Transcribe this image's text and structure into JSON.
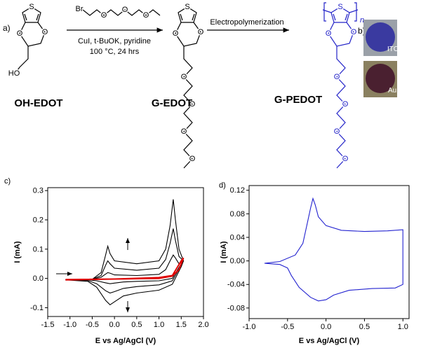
{
  "scheme": {
    "panel_a": "a)",
    "panel_b": "b)",
    "reagent": {
      "atoms": [
        "Br",
        "O",
        "O",
        "O"
      ]
    },
    "conditions": [
      "CuI, t-BuOK, pyridine",
      "100 °C, 24 hrs"
    ],
    "step2": "Electropolymerization",
    "compounds": [
      {
        "name": "OH-EDOT",
        "atoms": [
          "S",
          "O",
          "O",
          "HO"
        ]
      },
      {
        "name": "G-EDOT",
        "atoms": [
          "S",
          "O",
          "O",
          "O",
          "O",
          "O",
          "O"
        ]
      },
      {
        "name": "G-PEDOT",
        "atoms": [
          "S",
          "O",
          "O",
          "O",
          "O",
          "O",
          "O"
        ],
        "subscript": "n"
      }
    ],
    "photos": [
      "ITO",
      "Au"
    ]
  },
  "chart_data": [
    {
      "type": "line",
      "panel": "c)",
      "xlabel": "E vs Ag/AgCl (V)",
      "ylabel": "I (mA)",
      "xlim": [
        -1.5,
        2.0
      ],
      "ylim": [
        -0.13,
        0.31
      ],
      "xticks": [
        -1.5,
        {
          "value": -1,
          "label": "-1.0"
        },
        -0.5,
        {
          "value": 0,
          "label": "0.0"
        },
        0.5,
        {
          "value": 1,
          "label": "1.0"
        },
        1.5,
        {
          "value": 2,
          "label": "2.0"
        }
      ],
      "yticks": [
        -0.1,
        {
          "value": 0,
          "label": "0.0"
        },
        0.1,
        0.2,
        0.3
      ],
      "series": [
        {
          "color": "#000000",
          "x": [
            -1.1,
            -0.5,
            -0.3,
            -0.2,
            -0.15,
            -0.1,
            0,
            0.5,
            1.0,
            1.15,
            1.25,
            1.32,
            1.37,
            1.45,
            1.55,
            1.5,
            1.3,
            1.0,
            0.5,
            0.2,
            0,
            -0.1,
            -0.2,
            -0.4,
            -0.6,
            -1.1
          ],
          "values": [
            -0.005,
            -0.003,
            0.02,
            0.08,
            0.11,
            0.085,
            0.06,
            0.05,
            0.06,
            0.1,
            0.18,
            0.27,
            0.2,
            0.1,
            0.06,
            0.04,
            -0.02,
            -0.04,
            -0.05,
            -0.06,
            -0.08,
            -0.09,
            -0.075,
            -0.03,
            -0.01,
            -0.005
          ]
        },
        {
          "color": "#000000",
          "x": [
            -1.1,
            -0.5,
            -0.3,
            -0.2,
            -0.15,
            -0.1,
            0,
            0.5,
            1.0,
            1.15,
            1.25,
            1.32,
            1.37,
            1.45,
            1.55,
            1.5,
            1.3,
            1.0,
            0.5,
            0.2,
            0,
            -0.1,
            -0.2,
            -0.4,
            -0.6,
            -1.1
          ],
          "values": [
            -0.005,
            -0.003,
            0.01,
            0.045,
            0.06,
            0.05,
            0.035,
            0.028,
            0.035,
            0.065,
            0.12,
            0.17,
            0.13,
            0.075,
            0.06,
            0.045,
            -0.008,
            -0.022,
            -0.028,
            -0.034,
            -0.045,
            -0.05,
            -0.042,
            -0.018,
            -0.007,
            -0.005
          ]
        },
        {
          "color": "#000000",
          "x": [
            -1.1,
            -0.5,
            -0.3,
            -0.2,
            -0.15,
            -0.1,
            0,
            0.5,
            1.0,
            1.15,
            1.25,
            1.32,
            1.37,
            1.45,
            1.55,
            1.5,
            1.3,
            1.0,
            0.5,
            0.2,
            0,
            -0.1,
            -0.2,
            -0.4,
            -0.6,
            -1.1
          ],
          "values": [
            -0.005,
            -0.003,
            0.004,
            0.015,
            0.02,
            0.018,
            0.012,
            0.01,
            0.014,
            0.03,
            0.06,
            0.08,
            0.07,
            0.05,
            0.06,
            0.05,
            0.0,
            -0.008,
            -0.01,
            -0.012,
            -0.016,
            -0.018,
            -0.015,
            -0.008,
            -0.005,
            -0.005
          ]
        },
        {
          "color": "#e00000",
          "x": [
            -1.1,
            0,
            1.0,
            1.3,
            1.45,
            1.55,
            1.5,
            1.3,
            1.0,
            0,
            -1.1
          ],
          "values": [
            -0.004,
            -0.002,
            0.0,
            0.008,
            0.03,
            0.07,
            0.06,
            0.01,
            0.003,
            -0.002,
            -0.005
          ]
        }
      ]
    },
    {
      "type": "line",
      "panel": "d)",
      "xlabel": "E vs Ag/AgCl (V)",
      "ylabel": "I (mA)",
      "xlim": [
        -1.0,
        1.08
      ],
      "ylim": [
        -0.098,
        0.128
      ],
      "xticks": [
        {
          "value": -1,
          "label": "-1.0"
        },
        -0.5,
        {
          "value": 0,
          "label": "0.0"
        },
        0.5,
        {
          "value": 1,
          "label": "1.0"
        }
      ],
      "yticks": [
        -0.08,
        -0.04,
        {
          "value": 0,
          "label": "0.00"
        },
        0.04,
        0.08,
        0.12
      ],
      "series": [
        {
          "color": "#2323d0",
          "x": [
            -0.8,
            -0.6,
            -0.4,
            -0.3,
            -0.25,
            -0.2,
            -0.17,
            -0.14,
            -0.1,
            0,
            0.2,
            0.5,
            0.8,
            1.0,
            1.0,
            0.9,
            0.6,
            0.3,
            0.1,
            0,
            -0.1,
            -0.2,
            -0.35,
            -0.45,
            -0.5,
            -0.6,
            -0.8
          ],
          "values": [
            -0.004,
            -0.001,
            0.01,
            0.03,
            0.06,
            0.09,
            0.106,
            0.095,
            0.075,
            0.06,
            0.052,
            0.05,
            0.051,
            0.053,
            -0.04,
            -0.046,
            -0.047,
            -0.05,
            -0.058,
            -0.066,
            -0.068,
            -0.062,
            -0.045,
            -0.025,
            -0.012,
            -0.006,
            -0.004
          ]
        }
      ]
    }
  ]
}
